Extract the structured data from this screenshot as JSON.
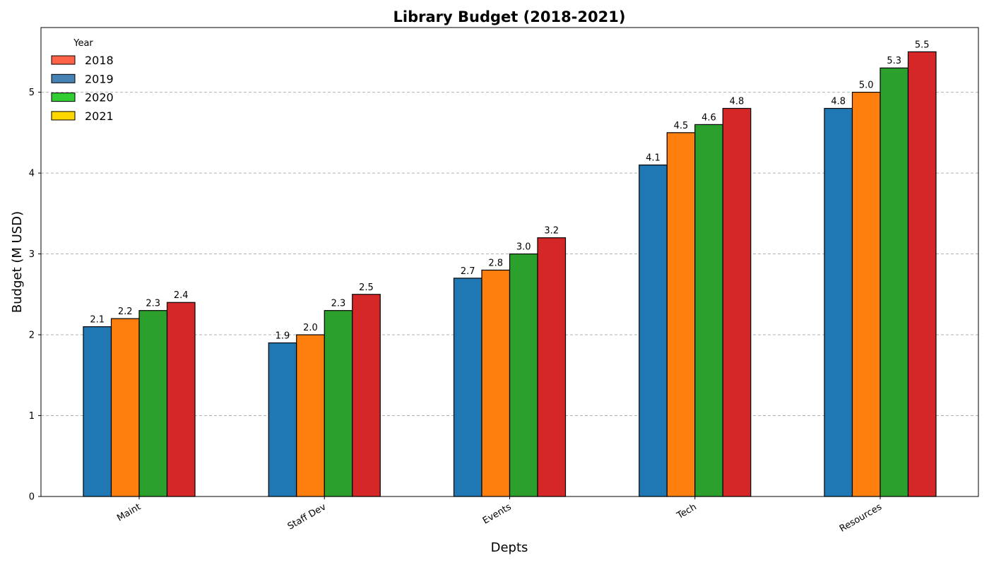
{
  "chart_data": {
    "type": "bar",
    "title": "Library Budget (2018-2021)",
    "xlabel": "Depts",
    "ylabel": "Budget (M USD)",
    "categories": [
      "Maint",
      "Staff Dev",
      "Events",
      "Tech",
      "Resources"
    ],
    "series": [
      {
        "name": "2018",
        "values": [
          2.1,
          1.9,
          2.7,
          4.1,
          4.8
        ],
        "bar_color": "#1f77b4",
        "legend_color": "#ff6347"
      },
      {
        "name": "2019",
        "values": [
          2.2,
          2.0,
          2.8,
          4.5,
          5.0
        ],
        "bar_color": "#ff7f0e",
        "legend_color": "#4682b4"
      },
      {
        "name": "2020",
        "values": [
          2.3,
          2.3,
          3.0,
          4.6,
          5.3
        ],
        "bar_color": "#2ca02c",
        "legend_color": "#32cd32"
      },
      {
        "name": "2021",
        "values": [
          2.4,
          2.5,
          3.2,
          4.8,
          5.5
        ],
        "bar_color": "#d62728",
        "legend_color": "#ffd700"
      }
    ],
    "ylim": [
      0,
      5.8
    ],
    "yticks": [
      0,
      1,
      2,
      3,
      4,
      5
    ],
    "grid": "y-dashed",
    "legend": {
      "title": "Year",
      "placement": "top-left"
    }
  }
}
